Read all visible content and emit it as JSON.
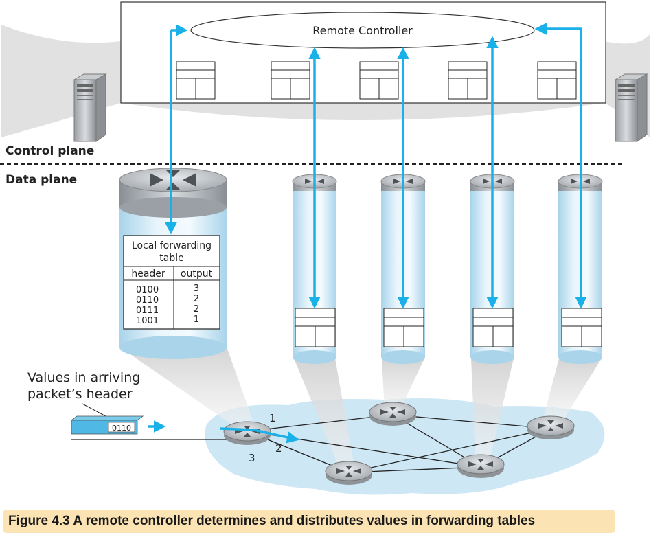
{
  "controller": {
    "label": "Remote Controller"
  },
  "planes": {
    "control": "Control plane",
    "data": "Data plane"
  },
  "local_table": {
    "title_line1": "Local forwarding",
    "title_line2": "table",
    "col_header": "header",
    "col_output": "output",
    "rows": [
      {
        "header": "0100",
        "output": "3"
      },
      {
        "header": "0110",
        "output": "2"
      },
      {
        "header": "0111",
        "output": "2"
      },
      {
        "header": "1001",
        "output": "1"
      }
    ]
  },
  "packet": {
    "caption_line1": "Values in arriving",
    "caption_line2": "packet’s header",
    "value": "0110"
  },
  "ports": {
    "p1": "1",
    "p2": "2",
    "p3": "3"
  },
  "caption": "Figure 4.3 A remote controller determines and distributes values in forwarding tables",
  "colors": {
    "arrow": "#1ab0e8",
    "caption_bg": "#fbe3b4",
    "network_bg": "#c8e4f4"
  }
}
